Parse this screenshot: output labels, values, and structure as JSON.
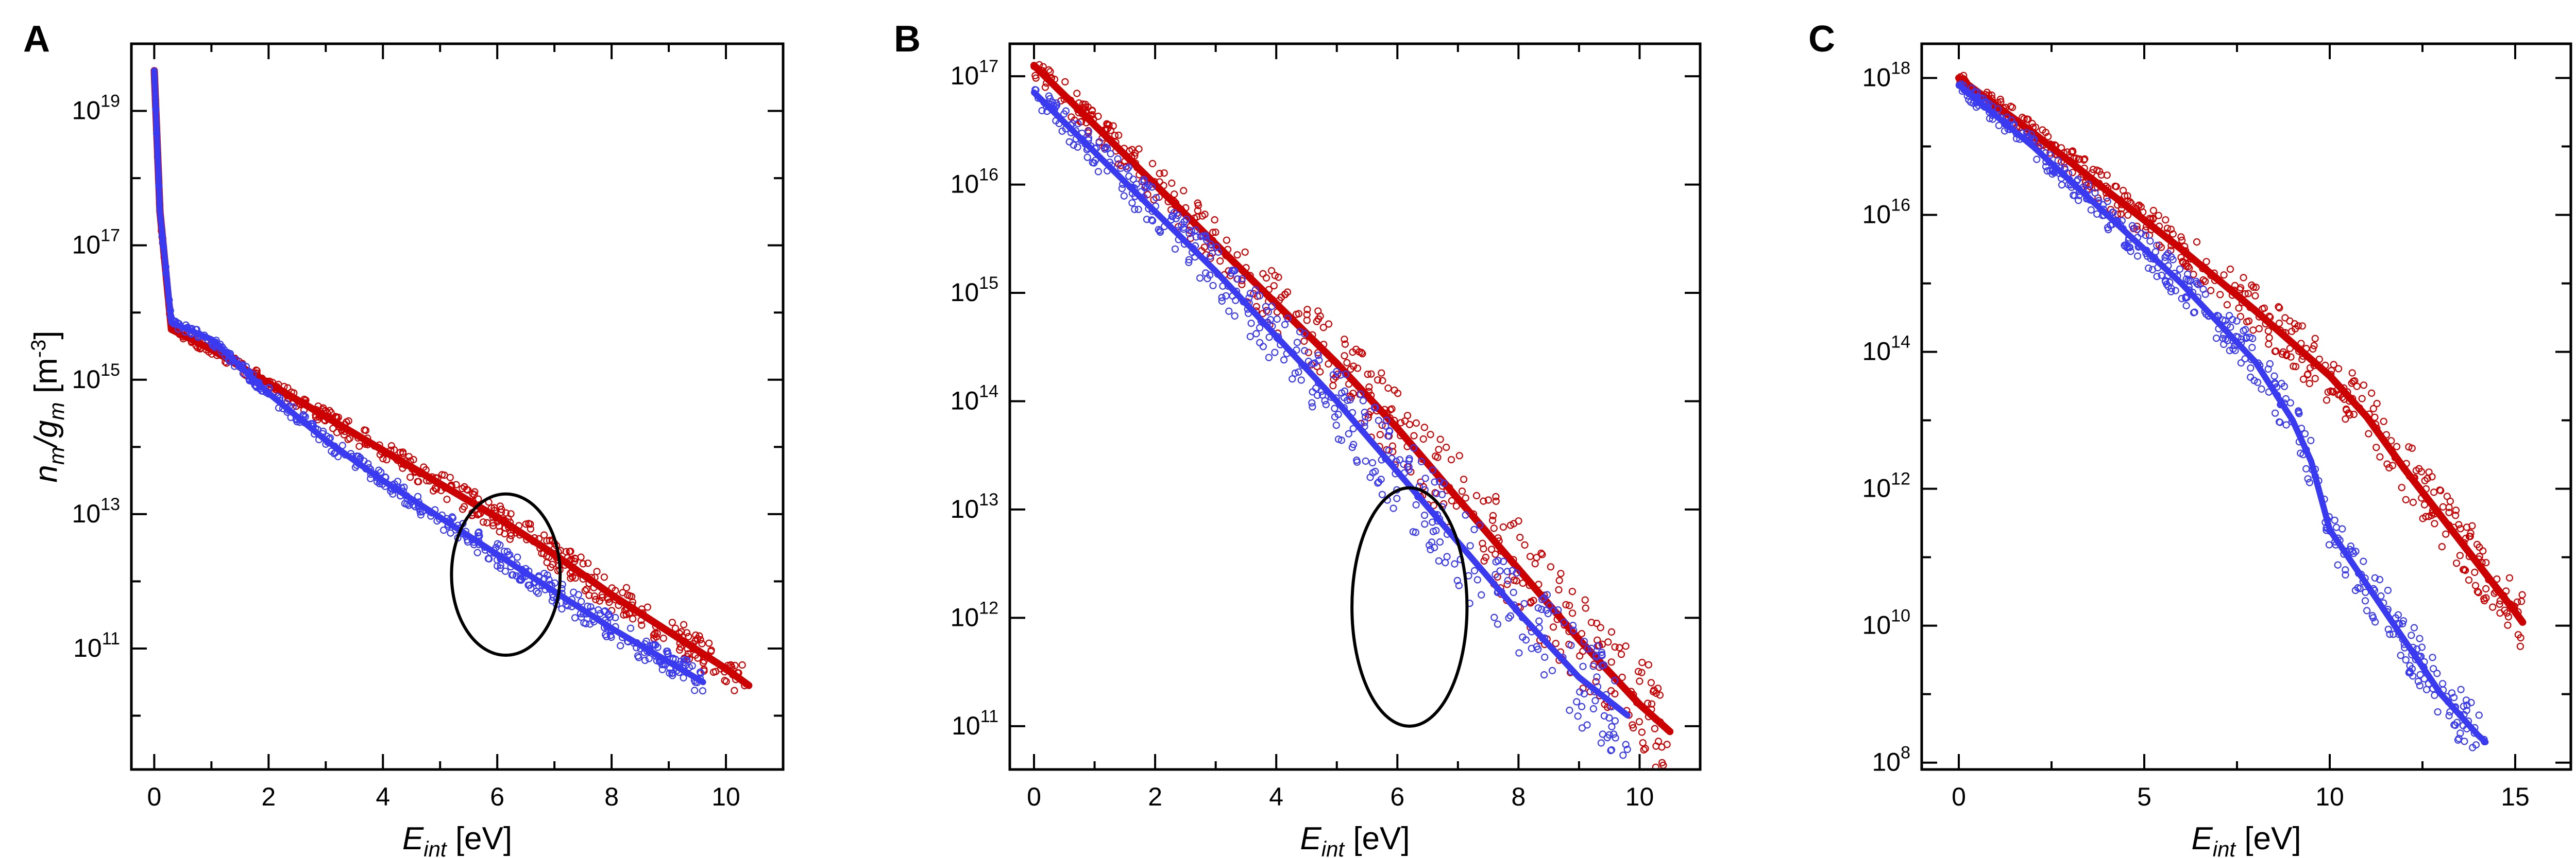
{
  "colors": {
    "series_red": "#cc0000",
    "series_blue": "#3a3af0",
    "axis": "#000000"
  },
  "chart_data": [
    {
      "type": "scatter",
      "panel": "A",
      "xlabel": "E",
      "xlabel_sub": "int",
      "xlabel_unit": "[eV]",
      "ylabel": "n",
      "ylabel_sub": "m",
      "ylabel_mid": "/g",
      "ylabel_sub2": "m",
      "ylabel_unit": "[m",
      "ylabel_exp": "-3",
      "ylabel_close": "]",
      "xlim": [
        -0.4,
        11.0
      ],
      "ylim_log10": [
        9.2,
        20.0
      ],
      "xticks": [
        {
          "v": 0,
          "label": "0"
        },
        {
          "v": 2,
          "label": "2"
        },
        {
          "v": 4,
          "label": "4"
        },
        {
          "v": 6,
          "label": "6"
        },
        {
          "v": 8,
          "label": "8"
        },
        {
          "v": 10,
          "label": "10"
        }
      ],
      "yticks": [
        {
          "e": 11,
          "base": "10",
          "exp": "11"
        },
        {
          "e": 13,
          "base": "10",
          "exp": "13"
        },
        {
          "e": 15,
          "base": "10",
          "exp": "15"
        },
        {
          "e": 17,
          "base": "10",
          "exp": "17"
        },
        {
          "e": 19,
          "base": "10",
          "exp": "19"
        }
      ],
      "series": [
        {
          "name": "red",
          "color": "#cc0000",
          "trend": [
            [
              0.0,
              19.6
            ],
            [
              0.1,
              17.5
            ],
            [
              0.3,
              15.75
            ],
            [
              1.0,
              15.45
            ],
            [
              2.0,
              14.95
            ],
            [
              3.0,
              14.45
            ],
            [
              4.0,
              13.95
            ],
            [
              5.0,
              13.45
            ],
            [
              6.0,
              12.95
            ],
            [
              7.0,
              12.4
            ],
            [
              8.0,
              11.8
            ],
            [
              9.0,
              11.25
            ],
            [
              10.0,
              10.7
            ],
            [
              10.4,
              10.45
            ]
          ],
          "spread_log10": 0.25
        },
        {
          "name": "blue",
          "color": "#3a3af0",
          "trend": [
            [
              0.0,
              19.6
            ],
            [
              0.1,
              17.5
            ],
            [
              0.3,
              15.85
            ],
            [
              1.0,
              15.6
            ],
            [
              2.0,
              14.8
            ],
            [
              3.0,
              14.1
            ],
            [
              4.0,
              13.5
            ],
            [
              5.0,
              12.95
            ],
            [
              6.0,
              12.4
            ],
            [
              7.0,
              11.85
            ],
            [
              8.0,
              11.3
            ],
            [
              9.0,
              10.8
            ],
            [
              9.6,
              10.5
            ]
          ],
          "spread_log10": 0.2
        }
      ],
      "annotations": [
        {
          "type": "ellipse",
          "center": [
            6.15,
            12.1
          ],
          "rx_x": 0.95,
          "ry_log10": 1.2
        }
      ]
    },
    {
      "type": "scatter",
      "panel": "B",
      "xlabel": "E",
      "xlabel_sub": "int",
      "xlabel_unit": "[eV]",
      "xlim": [
        -0.4,
        11.0
      ],
      "ylim_log10": [
        10.6,
        17.3
      ],
      "xticks": [
        {
          "v": 0,
          "label": "0"
        },
        {
          "v": 2,
          "label": "2"
        },
        {
          "v": 4,
          "label": "4"
        },
        {
          "v": 6,
          "label": "6"
        },
        {
          "v": 8,
          "label": "8"
        },
        {
          "v": 10,
          "label": "10"
        }
      ],
      "yticks": [
        {
          "e": 11,
          "base": "10",
          "exp": "11"
        },
        {
          "e": 12,
          "base": "10",
          "exp": "12"
        },
        {
          "e": 13,
          "base": "10",
          "exp": "13"
        },
        {
          "e": 14,
          "base": "10",
          "exp": "14"
        },
        {
          "e": 15,
          "base": "10",
          "exp": "15"
        },
        {
          "e": 16,
          "base": "10",
          "exp": "16"
        },
        {
          "e": 17,
          "base": "10",
          "exp": "17"
        }
      ],
      "series": [
        {
          "name": "red",
          "color": "#cc0000",
          "trend": [
            [
              0.0,
              17.1
            ],
            [
              1.0,
              16.55
            ],
            [
              2.0,
              16.0
            ],
            [
              3.0,
              15.45
            ],
            [
              4.0,
              14.9
            ],
            [
              5.0,
              14.35
            ],
            [
              6.0,
              13.75
            ],
            [
              7.0,
              13.1
            ],
            [
              8.0,
              12.45
            ],
            [
              9.0,
              11.8
            ],
            [
              10.0,
              11.2
            ],
            [
              10.5,
              10.95
            ]
          ],
          "spread_log10": 0.45
        },
        {
          "name": "blue",
          "color": "#3a3af0",
          "trend": [
            [
              0.0,
              16.85
            ],
            [
              1.0,
              16.3
            ],
            [
              2.0,
              15.75
            ],
            [
              3.0,
              15.2
            ],
            [
              4.0,
              14.6
            ],
            [
              5.0,
              14.0
            ],
            [
              6.0,
              13.35
            ],
            [
              7.0,
              12.7
            ],
            [
              8.0,
              12.05
            ],
            [
              9.0,
              11.45
            ],
            [
              9.8,
              11.1
            ]
          ],
          "spread_log10": 0.45
        }
      ],
      "annotations": [
        {
          "type": "ellipse",
          "center": [
            6.2,
            12.1
          ],
          "rx_x": 0.95,
          "ry_log10": 1.1
        }
      ]
    },
    {
      "type": "scatter",
      "panel": "C",
      "xlabel": "E",
      "xlabel_sub": "int",
      "xlabel_unit": "[eV]",
      "xlim": [
        -1.0,
        16.5
      ],
      "ylim_log10": [
        7.9,
        18.5
      ],
      "xticks": [
        {
          "v": 0,
          "label": "0"
        },
        {
          "v": 5,
          "label": "5"
        },
        {
          "v": 10,
          "label": "10"
        },
        {
          "v": 15,
          "label": "15"
        }
      ],
      "yticks": [
        {
          "e": 8,
          "base": "10",
          "exp": "8"
        },
        {
          "e": 10,
          "base": "10",
          "exp": "10"
        },
        {
          "e": 12,
          "base": "10",
          "exp": "12"
        },
        {
          "e": 14,
          "base": "10",
          "exp": "14"
        },
        {
          "e": 16,
          "base": "10",
          "exp": "16"
        },
        {
          "e": 18,
          "base": "10",
          "exp": "18"
        }
      ],
      "series": [
        {
          "name": "red",
          "color": "#cc0000",
          "trend": [
            [
              0.0,
              18.0
            ],
            [
              2.0,
              17.2
            ],
            [
              4.0,
              16.35
            ],
            [
              6.0,
              15.5
            ],
            [
              8.0,
              14.6
            ],
            [
              10.0,
              13.65
            ],
            [
              11.0,
              13.05
            ],
            [
              12.0,
              12.3
            ],
            [
              13.0,
              11.6
            ],
            [
              14.0,
              10.9
            ],
            [
              15.0,
              10.2
            ],
            [
              15.2,
              10.05
            ]
          ],
          "spread_log10": 0.45
        },
        {
          "name": "blue",
          "color": "#3a3af0",
          "trend": [
            [
              0.0,
              17.9
            ],
            [
              2.0,
              17.0
            ],
            [
              4.0,
              16.0
            ],
            [
              6.0,
              15.0
            ],
            [
              8.0,
              13.85
            ],
            [
              9.0,
              13.0
            ],
            [
              9.5,
              12.4
            ],
            [
              10.0,
              11.4
            ],
            [
              11.0,
              10.6
            ],
            [
              12.0,
              9.8
            ],
            [
              13.0,
              9.0
            ],
            [
              14.0,
              8.4
            ],
            [
              14.2,
              8.3
            ]
          ],
          "spread_log10": 0.4
        }
      ],
      "annotations": []
    }
  ]
}
